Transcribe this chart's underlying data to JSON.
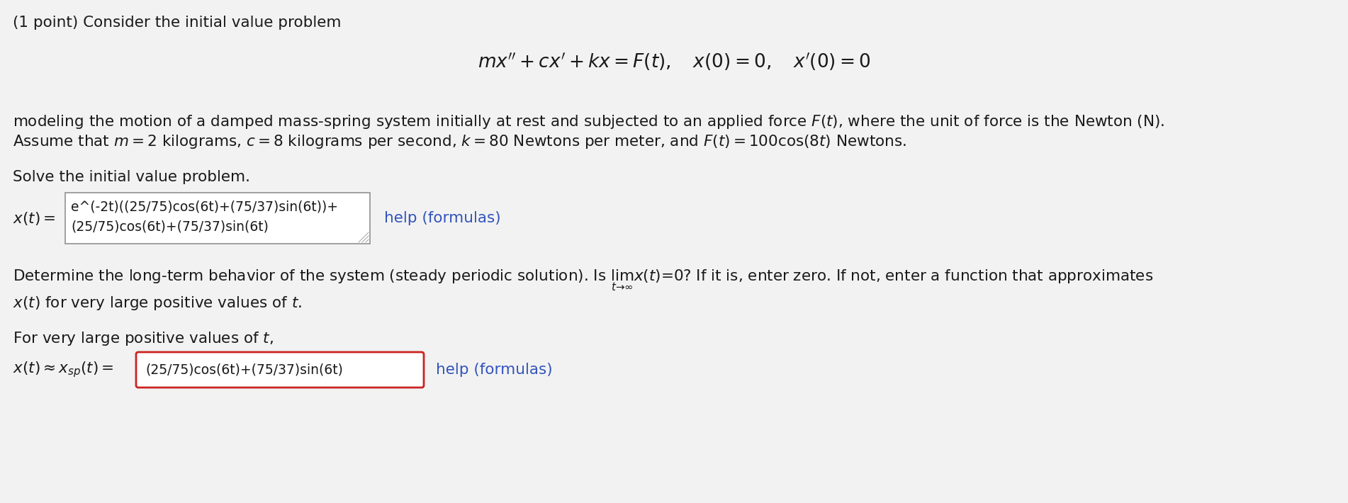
{
  "bg_color": "#f2f2f2",
  "text_color": "#1a1a1a",
  "blue_color": "#3355bb",
  "box_border_normal": "#999999",
  "box_border_red": "#cc2222",
  "line1": "(1 point) Consider the initial value problem",
  "equation_main": "$mx'' + cx' + kx = F(t), \\quad x(0) = 0, \\quad x'(0) = 0$",
  "line2a": "modeling the motion of a damped mass-spring system initially at rest and subjected to an applied force $F(t)$, where the unit of force is the Newton (N).",
  "line2b": "Assume that $m = 2$ kilograms, $c = 8$ kilograms per second, $k = 80$ Newtons per meter, and $F(t) = 100\\cos(8t)$ Newtons.",
  "line3": "Solve the initial value problem.",
  "xt_label": "$x(t) =$",
  "box1_line1": "e^(-2t)((25/75)cos(6t)+(75/37)sin(6t))+",
  "box1_line2": "(25/75)cos(6t)+(75/37)sin(6t)",
  "help1": "help (formulas)",
  "line4a": "Determine the long-term behavior of the system (steady periodic solution). Is $\\lim_{t \\to \\infty} x(t) = 0$? If it is, enter zero. If not, enter a function that approximates",
  "line4b": "$x(t)$ for very large positive values of $t$.",
  "line5": "For very large positive values of $t$,",
  "xt_label2": "$x(t) \\approx x_{sp}(t) =$",
  "box2_text": "(25/75)cos(6t)+(75/37)sin(6t)",
  "help2": "help (formulas)",
  "fig_width": 19.02,
  "fig_height": 7.1,
  "dpi": 100
}
